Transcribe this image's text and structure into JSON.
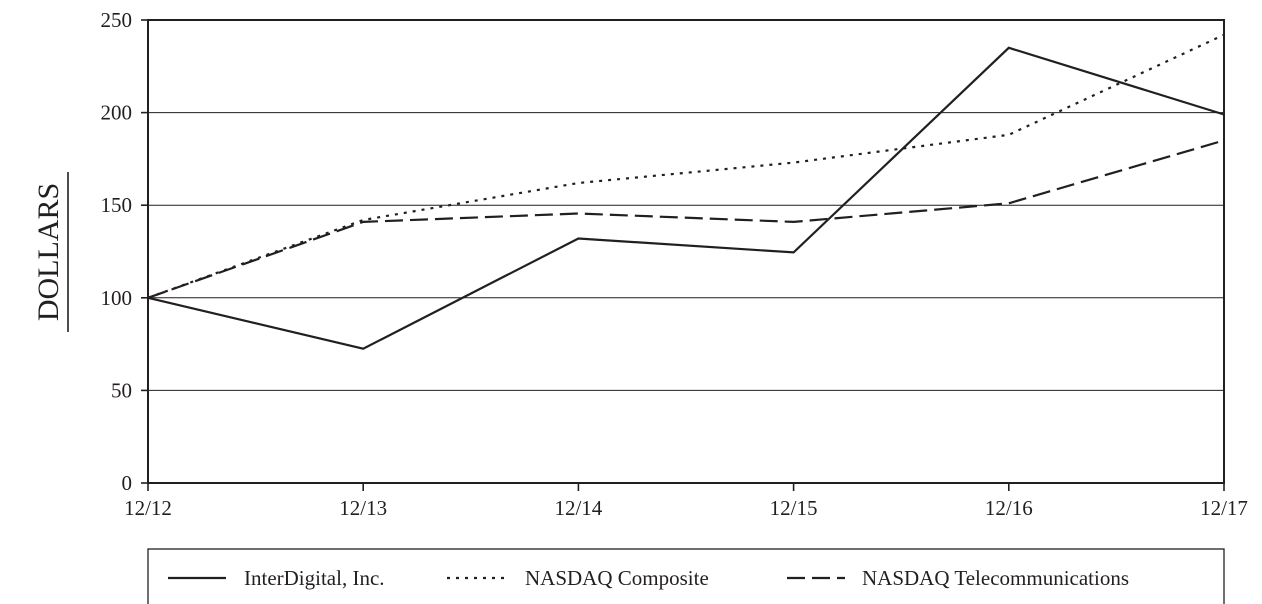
{
  "chart_data": {
    "type": "line",
    "categories": [
      "12/12",
      "12/13",
      "12/14",
      "12/15",
      "12/16",
      "12/17"
    ],
    "ylabel": "DOLLARS",
    "xlabel": "",
    "ylim": [
      0,
      250
    ],
    "yticks": [
      0,
      50,
      100,
      150,
      200,
      250
    ],
    "grid": true,
    "legend_position": "bottom",
    "series": [
      {
        "name": "InterDigital, Inc.",
        "style": "solid",
        "color": "#231f20",
        "values": [
          100,
          72.5,
          132,
          124.5,
          235,
          199
        ]
      },
      {
        "name": "NASDAQ Composite",
        "style": "dotted",
        "color": "#231f20",
        "values": [
          100,
          142,
          162,
          173,
          188,
          242
        ]
      },
      {
        "name": "NASDAQ Telecommunications",
        "style": "dashed",
        "color": "#231f20",
        "values": [
          100,
          141,
          145.5,
          141,
          151,
          185
        ]
      }
    ]
  }
}
